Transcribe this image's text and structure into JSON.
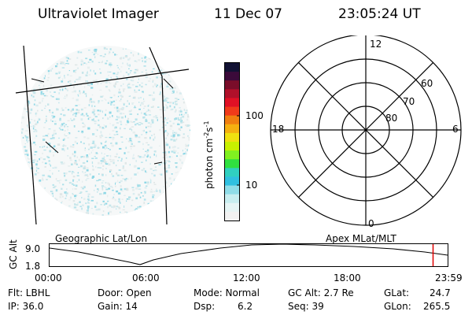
{
  "header": {
    "title": "Ultraviolet Imager",
    "date": "11 Dec 07",
    "time": "23:05:24 UT"
  },
  "left_panel": {
    "caption": "Geographic Lat/Lon"
  },
  "colorbar": {
    "unit_label": "photon cm",
    "unit_exp1": "-2",
    "unit_mid": "s",
    "unit_exp2": "-1",
    "tick_labels": [
      "100",
      "10"
    ],
    "colors": [
      "#111133",
      "#3b0a3a",
      "#7a0d2a",
      "#b0102a",
      "#e01025",
      "#f03a1a",
      "#f07f10",
      "#f5b010",
      "#f0e010",
      "#c8f000",
      "#80f020",
      "#30e040",
      "#30d0c0",
      "#30c0e0",
      "#90dde8",
      "#c8eef0",
      "#e6f5f5",
      "#f2f2f2"
    ]
  },
  "polar": {
    "caption": "Apex MLat/MLT",
    "mlt_labels": {
      "top": "12",
      "bottom": "0",
      "left": "18",
      "right": "6"
    },
    "lat_labels": [
      "60",
      "70",
      "80"
    ]
  },
  "timeline": {
    "ylabel": "GC Alt",
    "y_ticks": [
      "9.0",
      "1.8"
    ],
    "x_ticks": [
      "00:00",
      "06:00",
      "12:00",
      "18:00",
      "23:59"
    ],
    "marker_color": "#e00000",
    "line_color": "#000000"
  },
  "info": {
    "flt": "Flt: LBHL",
    "ip": "IP: 36.0",
    "door": "Door: Open",
    "gain": "Gain: 14",
    "mode": "Mode: Normal",
    "dsp_label": "Dsp:",
    "dsp_value": "6.2",
    "gc_alt": "GC Alt: 2.7 Re",
    "seq": "Seq: 39",
    "glat_label": "GLat:",
    "glat_value": "24.7",
    "glon_label": "GLon:",
    "glon_value": "265.5"
  }
}
